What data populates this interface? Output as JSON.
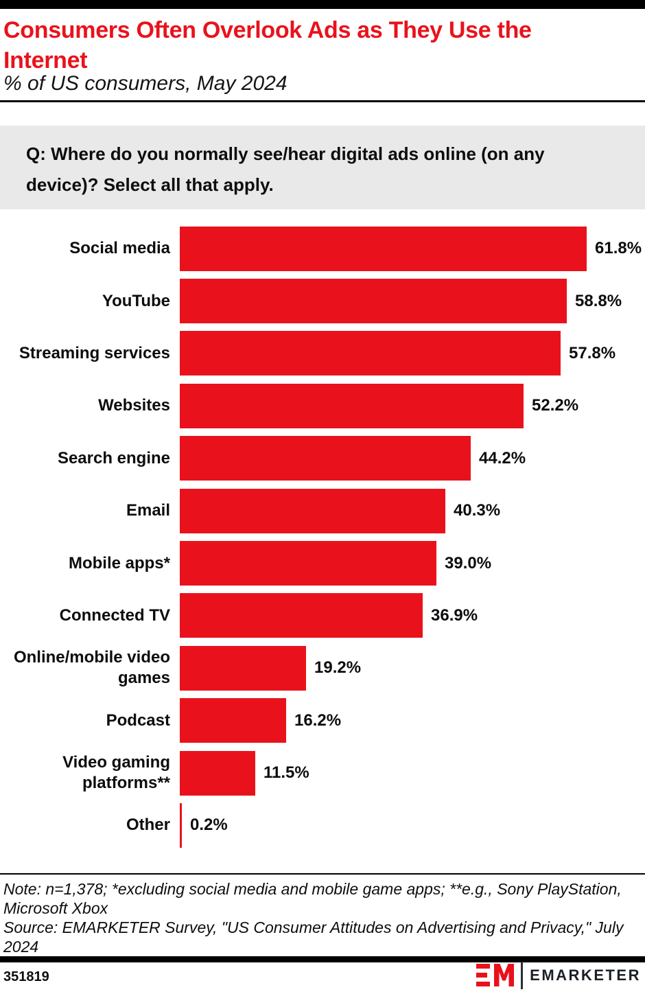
{
  "header": {
    "title_lines": [
      "Consumers Often Overlook Ads as They Use the",
      "Internet"
    ],
    "title_full": "Consumers Often Overlook Ads as They Use the Internet",
    "subtitle": "% of US consumers, May 2024"
  },
  "question": {
    "lines": [
      "Q: Where do you normally see/hear digital ads online (on any",
      "device)? Select all that apply."
    ]
  },
  "chart_data": {
    "type": "bar",
    "orientation": "horizontal",
    "title": "Consumers Often Overlook Ads as They Use the Internet",
    "subtitle": "% of US consumers, May 2024",
    "unit": "%",
    "xlim": [
      0,
      65
    ],
    "grid": false,
    "legend": false,
    "bar_color": "#E9121C",
    "categories": [
      "Social media",
      "YouTube",
      "Streaming services",
      "Websites",
      "Search engine",
      "Email",
      "Mobile apps*",
      "Connected TV",
      "Online/mobile video games",
      "Podcast",
      "Video gaming platforms**",
      "Other"
    ],
    "label_lines": [
      [
        "Social media"
      ],
      [
        "YouTube"
      ],
      [
        "Streaming services"
      ],
      [
        "Websites"
      ],
      [
        "Search engine"
      ],
      [
        "Email"
      ],
      [
        "Mobile apps*"
      ],
      [
        "Connected TV"
      ],
      [
        "Online/mobile video",
        "games"
      ],
      [
        "Podcast"
      ],
      [
        "Video gaming",
        "platforms**"
      ],
      [
        "Other"
      ]
    ],
    "values": [
      61.8,
      58.8,
      57.8,
      52.2,
      44.2,
      40.3,
      39.0,
      36.9,
      19.2,
      16.2,
      11.5,
      0.2
    ],
    "value_labels": [
      "61.8%",
      "58.8%",
      "57.8%",
      "52.2%",
      "44.2%",
      "40.3%",
      "39.0%",
      "36.9%",
      "19.2%",
      "16.2%",
      "11.5%",
      "0.2%"
    ]
  },
  "note": {
    "lines": [
      "Note: n=1,378; *excluding social media and mobile game apps; **e.g., Sony PlayStation,",
      "Microsoft Xbox",
      "Source: EMARKETER Survey, \"US Consumer Attitudes on Advertising and Privacy,\" July",
      "2024"
    ]
  },
  "footer": {
    "chart_id": "351819",
    "brand": "EMARKETER"
  },
  "colors": {
    "accent_red": "#E9121C",
    "question_bg": "#E9E9E9",
    "rule_black": "#000000"
  }
}
